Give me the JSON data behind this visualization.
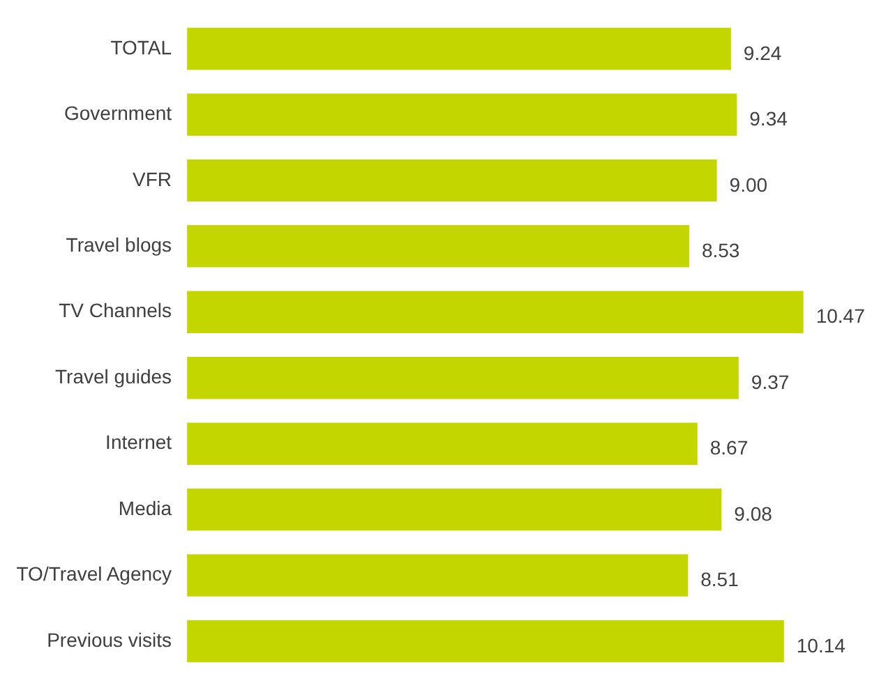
{
  "chart_data": {
    "type": "bar",
    "orientation": "horizontal",
    "categories": [
      "TOTAL",
      "Government",
      "VFR",
      "Travel blogs",
      "TV Channels",
      "Travel guides",
      "Internet",
      "Media",
      "TO/Travel Agency",
      "Previous visits"
    ],
    "values": [
      9.24,
      9.34,
      9.0,
      8.53,
      10.47,
      9.37,
      8.67,
      9.08,
      8.51,
      10.14
    ],
    "value_labels": [
      "9.24",
      "9.34",
      "9.00",
      "8.53",
      "10.47",
      "9.37",
      "8.67",
      "9.08",
      "8.51",
      "10.14"
    ],
    "color": "#c4d600",
    "legend": false
  }
}
